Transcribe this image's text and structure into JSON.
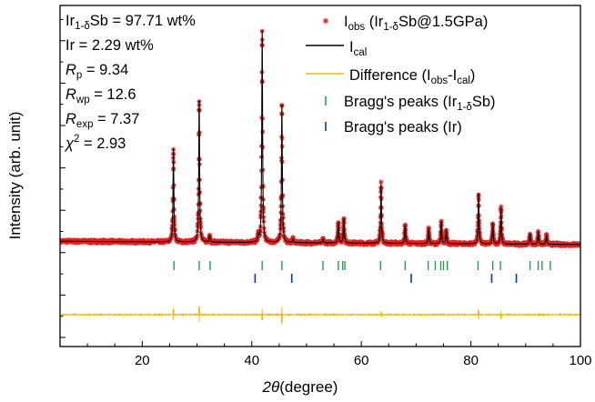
{
  "chart_data": {
    "type": "line",
    "xlabel_symbol": "2θ",
    "xlabel_unit": "(degree)",
    "ylabel": "Intensity (arb. unit)",
    "xlim": [
      5,
      100
    ],
    "x_ticks": [
      20,
      40,
      60,
      80,
      100
    ],
    "y_ticks_visible_labels": false,
    "colors": {
      "observed": "#e02020",
      "calculated": "#000000",
      "difference": "#f2b800",
      "bragg_main": "#1aa34a",
      "bragg_ir": "#1030c8"
    },
    "stats": [
      {
        "main": "Ir",
        "sub": "1-δ",
        "rest": "Sb = 97.71 wt%",
        "italic": false
      },
      {
        "main": "Ir",
        "sub": "",
        "rest": " =  2.29 wt%",
        "italic": false
      },
      {
        "main": "R",
        "sub": "p",
        "rest": " = 9.34",
        "italic": true
      },
      {
        "main": "R",
        "sub": "wp",
        "rest": " = 12.6",
        "italic": true
      },
      {
        "main": "R",
        "sub": "exp",
        "rest": " = 7.37",
        "italic": true
      },
      {
        "main": "χ",
        "sup": "2",
        "rest": " = 2.93",
        "italic": true
      }
    ],
    "legend": [
      {
        "key": "observed",
        "marker": "asterisk",
        "parts": [
          [
            "I",
            ""
          ],
          [
            "obs",
            "sub"
          ],
          [
            " (Ir",
            ""
          ],
          [
            "1-δ",
            "sub"
          ],
          [
            "Sb@1.5GPa)",
            ""
          ]
        ]
      },
      {
        "key": "calculated",
        "marker": "line",
        "parts": [
          [
            "I",
            ""
          ],
          [
            "cal",
            "sub"
          ]
        ]
      },
      {
        "key": "difference",
        "marker": "line",
        "parts": [
          [
            "Difference (I",
            ""
          ],
          [
            "obs",
            "sub"
          ],
          [
            "-I",
            ""
          ],
          [
            "cal",
            "sub"
          ],
          [
            ")",
            ""
          ]
        ]
      },
      {
        "key": "bragg_main",
        "marker": "tick",
        "parts": [
          [
            "Bragg's peaks (Ir",
            ""
          ],
          [
            "1-δ",
            "sub"
          ],
          [
            "Sb)",
            ""
          ]
        ]
      },
      {
        "key": "bragg_ir",
        "marker": "tick",
        "parts": [
          [
            "Bragg's peaks (Ir)",
            ""
          ]
        ]
      }
    ],
    "background": {
      "start": 1.1,
      "end": 0.85
    },
    "peaks": [
      {
        "x": 25.7,
        "height": 7.2
      },
      {
        "x": 30.4,
        "height": 10.9
      },
      {
        "x": 32.3,
        "height": 0.5
      },
      {
        "x": 41.2,
        "height": 0.5
      },
      {
        "x": 41.9,
        "height": 16.3
      },
      {
        "x": 45.5,
        "height": 10.6
      },
      {
        "x": 47.5,
        "height": 0.3
      },
      {
        "x": 53.0,
        "height": 0.3
      },
      {
        "x": 55.8,
        "height": 1.6
      },
      {
        "x": 56.8,
        "height": 1.9
      },
      {
        "x": 63.6,
        "height": 4.6
      },
      {
        "x": 68.0,
        "height": 1.4
      },
      {
        "x": 72.3,
        "height": 1.1
      },
      {
        "x": 74.6,
        "height": 1.7
      },
      {
        "x": 75.5,
        "height": 1.0
      },
      {
        "x": 81.4,
        "height": 3.9
      },
      {
        "x": 84.0,
        "height": 1.6
      },
      {
        "x": 85.5,
        "height": 2.8
      },
      {
        "x": 90.8,
        "height": 0.8
      },
      {
        "x": 92.3,
        "height": 0.9
      },
      {
        "x": 93.8,
        "height": 0.7
      }
    ],
    "bragg_main_positions": [
      25.8,
      30.4,
      32.4,
      41.9,
      45.5,
      53.0,
      55.8,
      56.6,
      57.0,
      63.5,
      68.0,
      72.2,
      73.5,
      74.5,
      75.0,
      75.7,
      81.3,
      84.0,
      85.4,
      90.8,
      92.3,
      93.0,
      94.5
    ],
    "bragg_ir_positions": [
      40.6,
      47.3,
      69.1,
      83.8,
      88.3
    ],
    "difference_spikes": [
      {
        "x": 25.7,
        "amp": 1.6
      },
      {
        "x": 30.4,
        "amp": 2.0
      },
      {
        "x": 41.9,
        "amp": -1.6
      },
      {
        "x": 45.5,
        "amp": -2.2
      },
      {
        "x": 63.6,
        "amp": 0.8
      },
      {
        "x": 81.4,
        "amp": 1.2
      },
      {
        "x": 85.5,
        "amp": -1.1
      }
    ]
  }
}
